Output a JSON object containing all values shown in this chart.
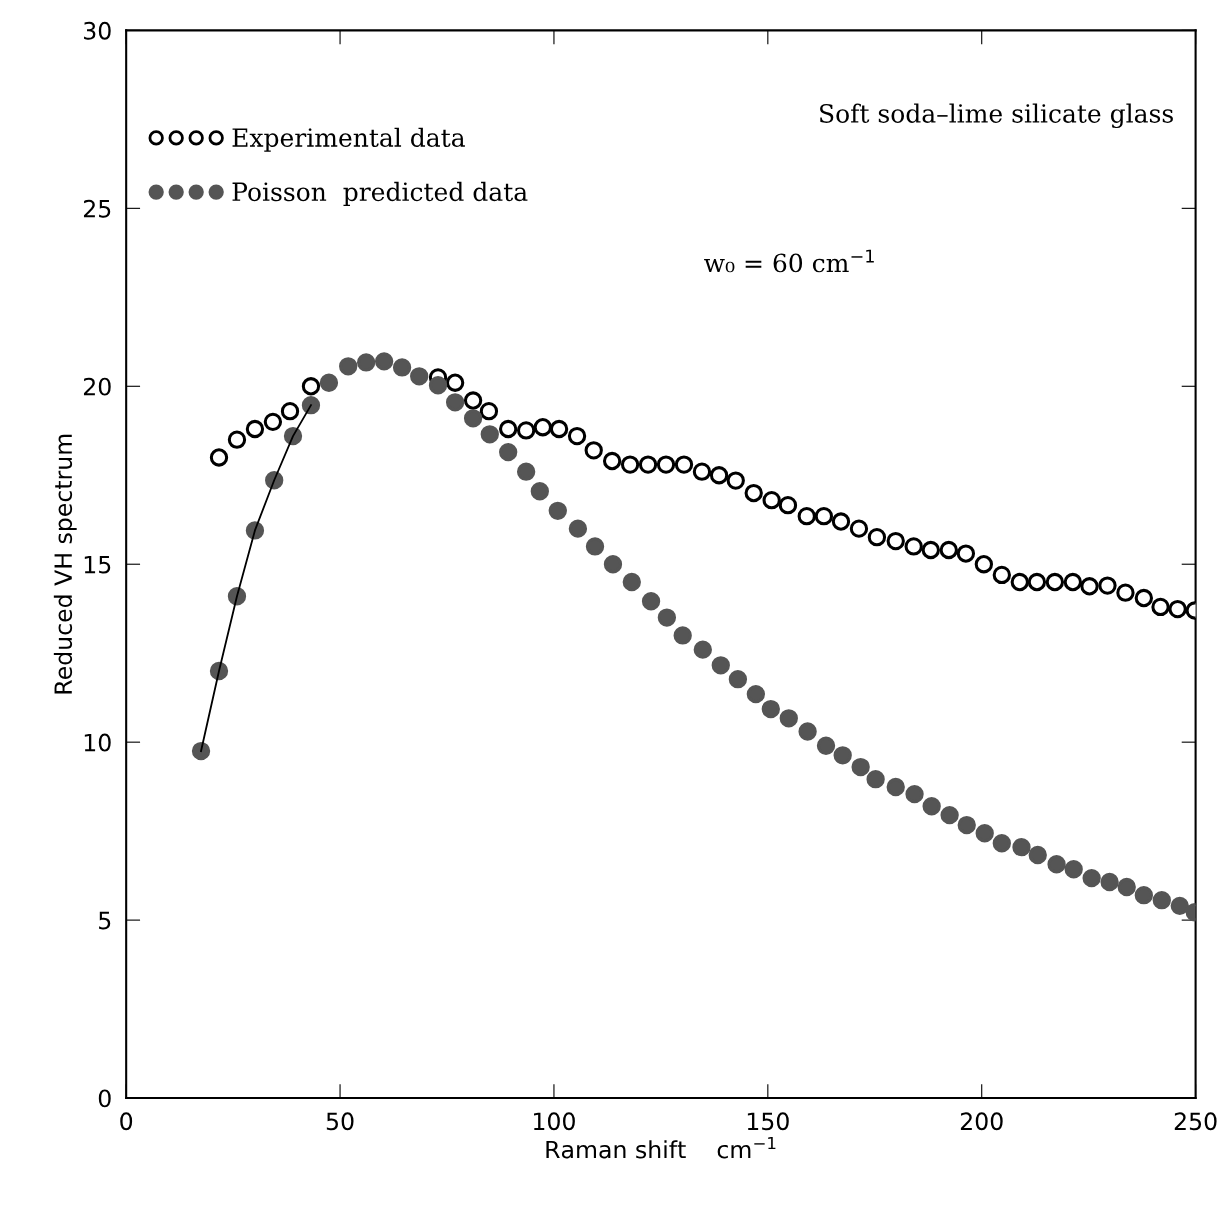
{
  "chart_data": {
    "type": "scatter",
    "xlabel": "Raman shift    cm$^{−1}$",
    "ylabel": "Reduced VH spectrum",
    "xlim": [
      0,
      250
    ],
    "xticks": [
      0,
      50,
      100,
      150,
      200,
      250
    ],
    "ylim": [
      0,
      30
    ],
    "yticks": [
      0,
      5,
      10,
      15,
      20,
      25,
      30
    ],
    "grid": false,
    "legend": "top left",
    "annotations": [
      "Soft soda–lime silicate glass",
      "w₀ = 60 cm$^{−1}$"
    ],
    "series": [
      {
        "name": "Experimental data",
        "type": "scatter",
        "marker": "circle",
        "color": "#000000",
        "x": [
          21.7,
          25.9,
          30.1,
          34.3,
          38.3,
          43.2,
          47.4,
          51.6,
          55.8,
          60.1,
          64.5,
          68.7,
          72.9,
          76.9,
          81.1,
          84.8,
          89.3,
          93.5,
          97.4,
          101.2,
          105.4,
          109.3,
          113.6,
          117.8,
          122.0,
          126.2,
          130.4,
          134.6,
          138.6,
          142.5,
          146.7,
          150.9,
          154.7,
          159.1,
          163.1,
          167.1,
          171.3,
          175.5,
          179.9,
          184.1,
          188.1,
          192.3,
          196.3,
          200.5,
          204.7,
          208.9,
          212.9,
          217.1,
          221.3,
          225.2,
          229.4,
          233.6,
          237.9,
          241.8,
          245.8,
          249.8
        ],
        "values": [
          18.0,
          18.5,
          18.8,
          19.0,
          19.3,
          20.0,
          null,
          null,
          null,
          null,
          null,
          null,
          20.25,
          20.1,
          19.6,
          19.3,
          18.8,
          18.76,
          18.85,
          18.8,
          18.6,
          18.2,
          17.9,
          17.8,
          17.8,
          17.8,
          17.8,
          17.6,
          17.5,
          17.35,
          17.0,
          16.8,
          16.66,
          16.35,
          16.35,
          16.2,
          16.0,
          15.76,
          15.65,
          15.5,
          15.4,
          15.4,
          15.3,
          15.0,
          14.7,
          14.5,
          14.5,
          14.5,
          14.5,
          14.38,
          14.4,
          14.2,
          14.05,
          13.8,
          13.74,
          13.7
        ]
      },
      {
        "type": "line",
        "color": "#000000",
        "line_style": "solid",
        "marker": "none",
        "x": [
          17.5,
          21.7,
          25.9,
          30.1,
          34.6,
          39.0,
          43.2
        ],
        "values": [
          9.75,
          12.0,
          14.1,
          15.95,
          17.36,
          18.6,
          19.47
        ]
      },
      {
        "name": "Poisson  predicted data",
        "type": "scatter",
        "marker": "circle",
        "color": "#555555",
        "x": [
          17.5,
          21.7,
          25.9,
          30.1,
          34.6,
          39.0,
          43.2,
          47.4,
          51.9,
          56.1,
          60.3,
          64.5,
          68.5,
          72.9,
          76.9,
          81.1,
          85.0,
          89.3,
          93.5,
          96.7,
          100.9,
          105.6,
          109.6,
          113.8,
          118.2,
          122.7,
          126.4,
          130.1,
          134.8,
          139.0,
          143.0,
          147.2,
          150.7,
          154.9,
          159.3,
          163.6,
          167.5,
          171.7,
          175.2,
          179.9,
          184.3,
          188.3,
          192.5,
          196.5,
          200.7,
          204.7,
          209.3,
          213.1,
          217.5,
          221.5,
          225.7,
          229.9,
          233.9,
          237.9,
          242.1,
          246.3,
          249.8
        ],
        "values": [
          9.75,
          12.0,
          14.1,
          15.95,
          17.36,
          18.6,
          19.47,
          20.1,
          20.56,
          20.67,
          20.7,
          20.53,
          20.28,
          20.03,
          19.55,
          19.1,
          18.65,
          18.15,
          17.6,
          17.05,
          16.5,
          16.0,
          15.5,
          15.0,
          14.5,
          13.96,
          13.5,
          13.0,
          12.6,
          12.16,
          11.77,
          11.35,
          10.93,
          10.67,
          10.3,
          9.9,
          9.63,
          9.3,
          8.96,
          8.74,
          8.54,
          8.2,
          7.95,
          7.67,
          7.44,
          7.16,
          7.05,
          6.83,
          6.57,
          6.43,
          6.18,
          6.07,
          5.93,
          5.7,
          5.56,
          5.4,
          5.22
        ]
      }
    ]
  }
}
